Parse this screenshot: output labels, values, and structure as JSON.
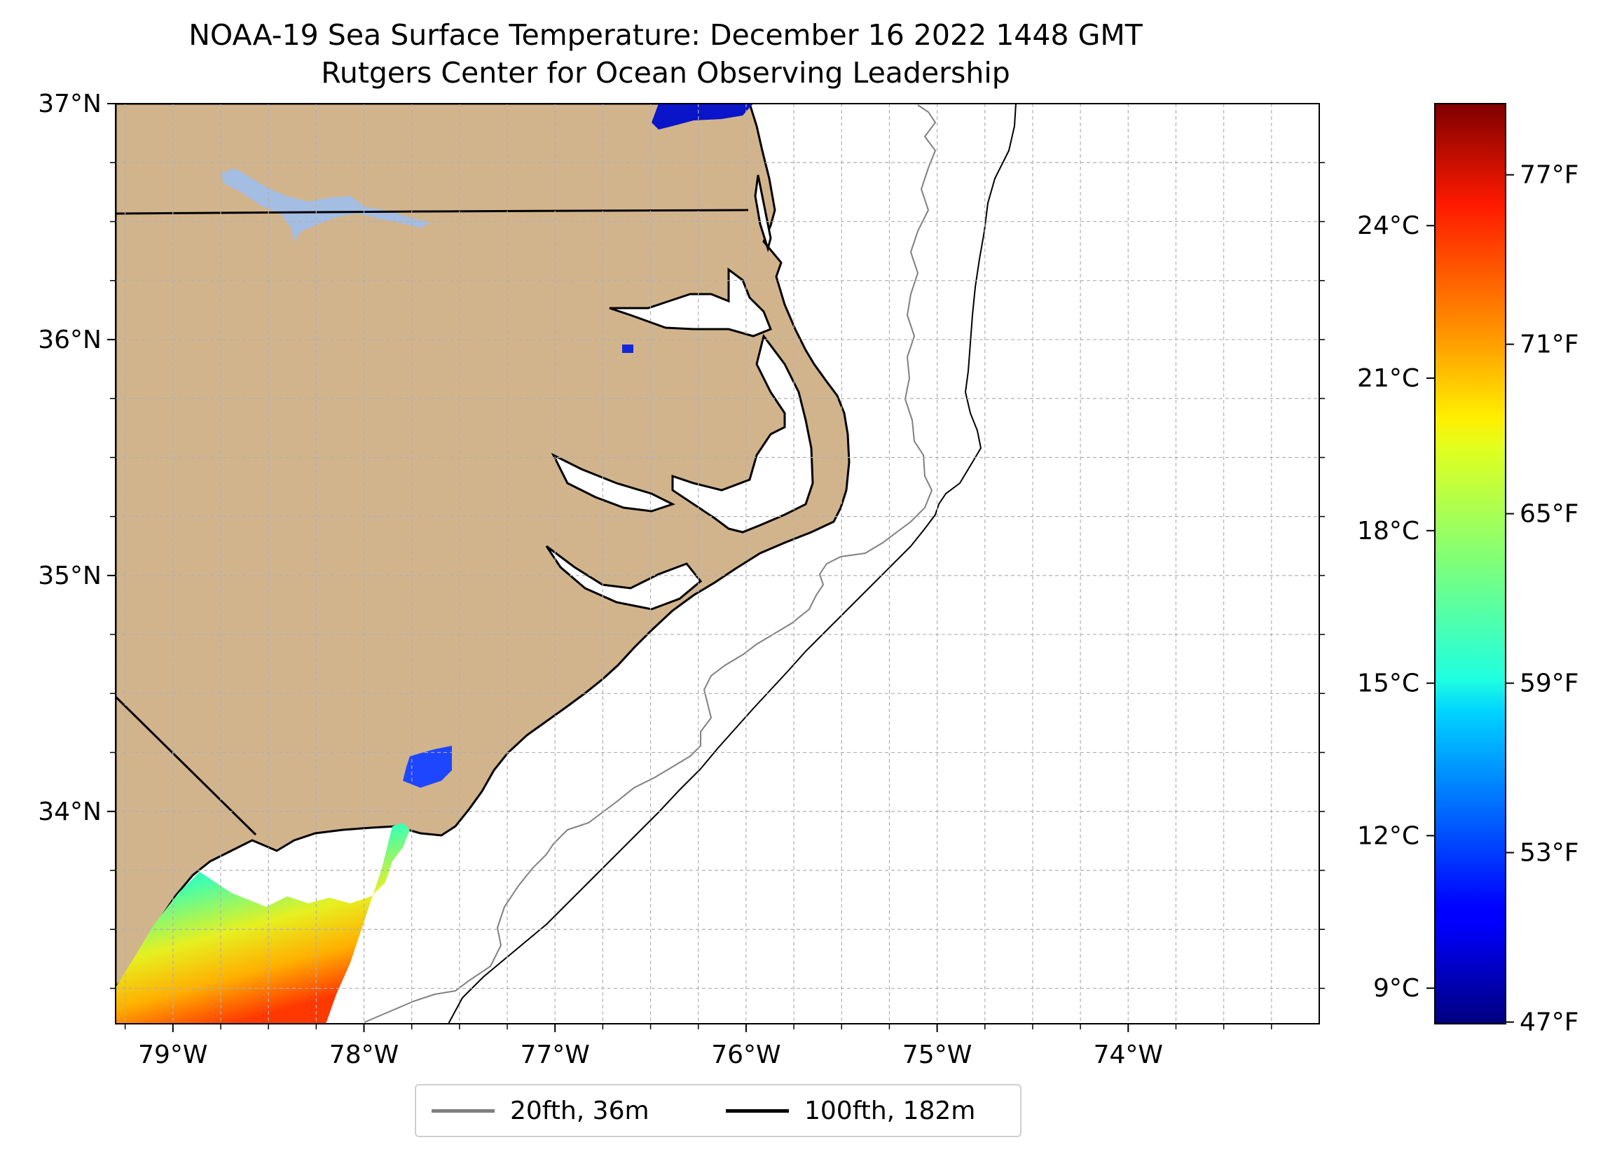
{
  "title": "NOAA-19 Sea Surface Temperature: December 16 2022 1448 GMT",
  "subtitle": "Rutgers Center for Ocean Observing Leadership",
  "map": {
    "lon_range": [
      -79.3,
      -73.0
    ],
    "lat_range": [
      33.1,
      37.0
    ],
    "lat_ticks": [
      {
        "value": 37,
        "label": "37°N"
      },
      {
        "value": 36,
        "label": "36°N"
      },
      {
        "value": 35,
        "label": "35°N"
      },
      {
        "value": 34,
        "label": "34°N"
      }
    ],
    "lon_ticks": [
      {
        "value": -79,
        "label": "79°W"
      },
      {
        "value": -78,
        "label": "78°W"
      },
      {
        "value": -77,
        "label": "77°W"
      },
      {
        "value": -76,
        "label": "76°W"
      },
      {
        "value": -75,
        "label": "75°W"
      },
      {
        "value": -74,
        "label": "74°W"
      }
    ],
    "gridlines": true,
    "land_color": "#d2b48c",
    "lake_color": "#a3bde3"
  },
  "colorbar": {
    "colormap": "jet",
    "range_c": [
      8.3,
      26.4
    ],
    "celsius_ticks": [
      {
        "value": 24,
        "label": "24°C"
      },
      {
        "value": 21,
        "label": "21°C"
      },
      {
        "value": 18,
        "label": "18°C"
      },
      {
        "value": 15,
        "label": "15°C"
      },
      {
        "value": 12,
        "label": "12°C"
      },
      {
        "value": 9,
        "label": "9°C"
      }
    ],
    "fahrenheit_ticks": [
      {
        "value": 77,
        "label": "77°F"
      },
      {
        "value": 71,
        "label": "71°F"
      },
      {
        "value": 65,
        "label": "65°F"
      },
      {
        "value": 59,
        "label": "59°F"
      },
      {
        "value": 53,
        "label": "53°F"
      },
      {
        "value": 47,
        "label": "47°F"
      }
    ]
  },
  "legend": {
    "placement": "bottom-center",
    "items": [
      {
        "label": "20fth, 36m",
        "color": "#808080"
      },
      {
        "label": "100fth, 182m",
        "color": "#000000"
      }
    ]
  }
}
